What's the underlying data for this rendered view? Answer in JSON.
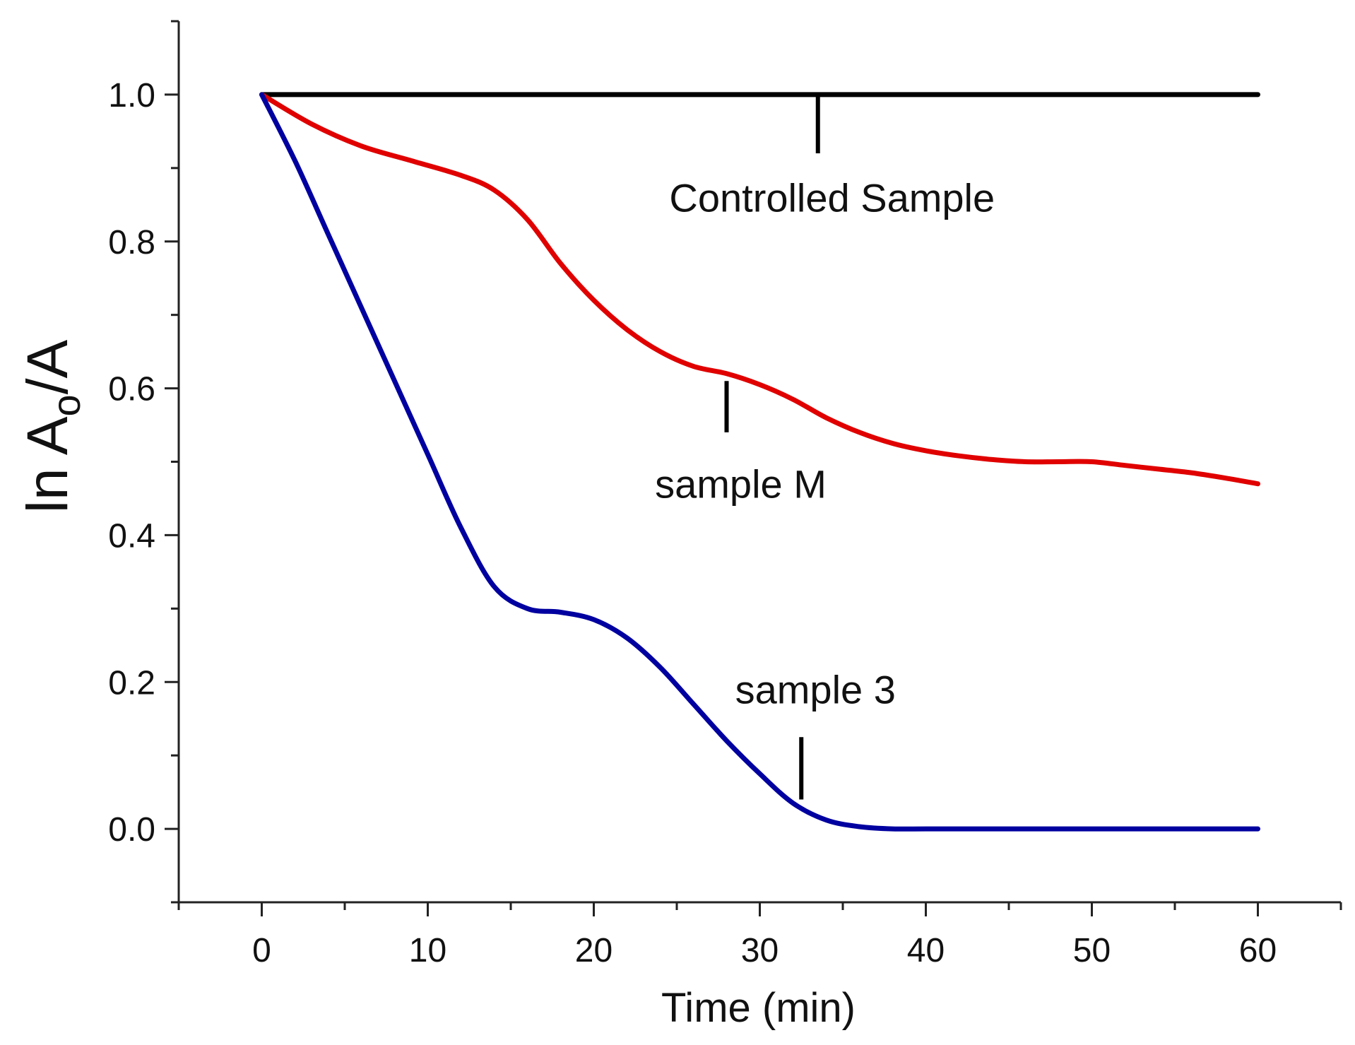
{
  "chart_data": {
    "type": "line",
    "title": "",
    "xlabel": "Time (min)",
    "ylabel": {
      "main": "ln A",
      "sub": "o",
      "tail": "/A"
    },
    "xlim": [
      -5,
      65
    ],
    "ylim": [
      -0.1,
      1.1
    ],
    "xticks": [
      0,
      10,
      20,
      30,
      40,
      50,
      60
    ],
    "yticks": [
      0.0,
      0.2,
      0.4,
      0.6,
      0.8,
      1.0
    ],
    "xtick_labels": [
      "0",
      "10",
      "20",
      "30",
      "40",
      "50",
      "60"
    ],
    "ytick_labels": [
      "0.0",
      "0.2",
      "0.4",
      "0.6",
      "0.8",
      "1.0"
    ],
    "series": [
      {
        "name": "Controlled Sample",
        "color": "#000000",
        "x": [
          0,
          60
        ],
        "y": [
          1.0,
          1.0
        ]
      },
      {
        "name": "sample M",
        "color": "#e00000",
        "x": [
          0,
          3,
          6,
          9,
          12,
          14,
          16,
          18,
          20,
          22,
          24,
          26,
          28,
          30,
          32,
          34,
          36,
          38,
          40,
          42,
          44,
          46,
          48,
          50,
          52,
          54,
          56,
          58,
          60
        ],
        "y": [
          1.0,
          0.96,
          0.93,
          0.91,
          0.89,
          0.87,
          0.83,
          0.77,
          0.72,
          0.68,
          0.65,
          0.63,
          0.62,
          0.605,
          0.585,
          0.56,
          0.54,
          0.525,
          0.515,
          0.508,
          0.503,
          0.5,
          0.5,
          0.5,
          0.495,
          0.49,
          0.485,
          0.478,
          0.47
        ]
      },
      {
        "name": "sample 3",
        "color": "#0000a0",
        "x": [
          0,
          2,
          4,
          6,
          8,
          10,
          12,
          14,
          16,
          18,
          20,
          22,
          24,
          26,
          28,
          30,
          32,
          34,
          36,
          38,
          40,
          45,
          50,
          55,
          60
        ],
        "y": [
          1.0,
          0.91,
          0.81,
          0.71,
          0.61,
          0.51,
          0.41,
          0.33,
          0.3,
          0.295,
          0.285,
          0.26,
          0.22,
          0.17,
          0.12,
          0.075,
          0.035,
          0.012,
          0.003,
          0.0,
          0.0,
          0.0,
          0.0,
          0.0,
          0.0
        ]
      }
    ],
    "annotations": [
      {
        "text": "Controlled Sample",
        "series": "Controlled Sample",
        "x": 33.5,
        "y_line": [
          0.92,
          1.0
        ],
        "y_text": 0.86
      },
      {
        "text": "sample M",
        "series": "sample M",
        "x": 28,
        "y_line": [
          0.54,
          0.61
        ],
        "y_text": 0.47
      },
      {
        "text": "sample 3",
        "series": "sample 3",
        "x": 32.5,
        "y_line": [
          0.04,
          0.125
        ],
        "y_text": 0.19
      }
    ]
  }
}
